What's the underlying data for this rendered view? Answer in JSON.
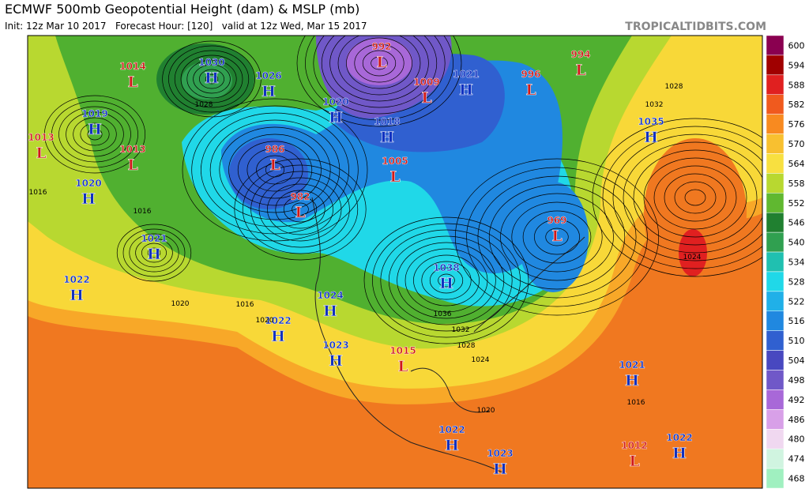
{
  "header": {
    "title": "ECMWF 500mb Geopotential Height (dam) & MSLP (mb)",
    "subtitle": "Init: 12z Mar 10 2017   Forecast Hour: [120]   valid at 12z Wed, Mar 15 2017",
    "credit": "TROPICALTIDBITS.COM"
  },
  "colorbar": {
    "labels": [
      "600",
      "594",
      "588",
      "582",
      "576",
      "570",
      "564",
      "558",
      "552",
      "546",
      "540",
      "534",
      "528",
      "522",
      "516",
      "510",
      "504",
      "498",
      "492",
      "486",
      "480",
      "474",
      "468"
    ],
    "colors": [
      "#8a0050",
      "#a00000",
      "#e02020",
      "#f05a1e",
      "#f88a20",
      "#f8c030",
      "#f8e040",
      "#b8d830",
      "#60b830",
      "#208030",
      "#30a050",
      "#20c0b0",
      "#20d8e8",
      "#20b0e8",
      "#2088e0",
      "#3060d0",
      "#4848c0",
      "#7058c8",
      "#a868d8",
      "#d8a0e8",
      "#f0d8f0",
      "#d0f4e0",
      "#a0f0c0"
    ]
  },
  "centers": [
    {
      "letter": "H",
      "pressure": "1030"
    },
    {
      "letter": "L",
      "pressure": "1014"
    },
    {
      "letter": "H",
      "pressure": "1026"
    },
    {
      "letter": "H",
      "pressure": "1019"
    },
    {
      "letter": "L",
      "pressure": "1013"
    },
    {
      "letter": "L",
      "pressure": "1013"
    },
    {
      "letter": "H",
      "pressure": "1020"
    },
    {
      "letter": "H",
      "pressure": "1021"
    },
    {
      "letter": "H",
      "pressure": "1022"
    },
    {
      "letter": "L",
      "pressure": "986"
    },
    {
      "letter": "L",
      "pressure": "982"
    },
    {
      "letter": "H",
      "pressure": "1020"
    },
    {
      "letter": "H",
      "pressure": "1018"
    },
    {
      "letter": "L",
      "pressure": "992"
    },
    {
      "letter": "L",
      "pressure": "1009"
    },
    {
      "letter": "H",
      "pressure": "1021"
    },
    {
      "letter": "L",
      "pressure": "996"
    },
    {
      "letter": "L",
      "pressure": "994"
    },
    {
      "letter": "H",
      "pressure": "1035"
    },
    {
      "letter": "L",
      "pressure": "1005"
    },
    {
      "letter": "L",
      "pressure": "969"
    },
    {
      "letter": "H",
      "pressure": "1038"
    },
    {
      "letter": "H",
      "pressure": "1024"
    },
    {
      "letter": "H",
      "pressure": "1022"
    },
    {
      "letter": "H",
      "pressure": "1023"
    },
    {
      "letter": "L",
      "pressure": "1015"
    },
    {
      "letter": "H",
      "pressure": "1021"
    },
    {
      "letter": "H",
      "pressure": "1022"
    },
    {
      "letter": "H",
      "pressure": "1023"
    },
    {
      "letter": "L",
      "pressure": "1012"
    },
    {
      "letter": "H",
      "pressure": "1022"
    }
  ],
  "isobar_labels": [
    "1028",
    "1016",
    "1016",
    "1020",
    "1016",
    "1020",
    "1032",
    "1028",
    "1024",
    "1020",
    "1016",
    "1028",
    "1032",
    "1036",
    "1024"
  ]
}
